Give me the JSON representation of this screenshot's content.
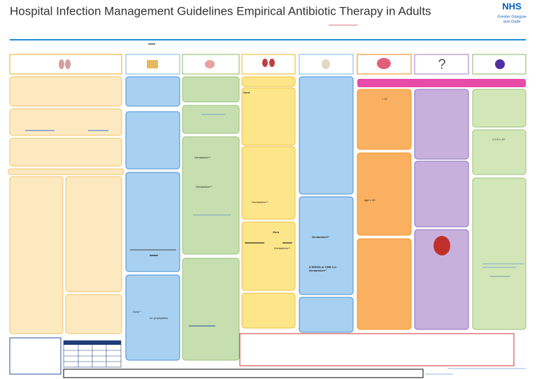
{
  "header": {
    "title": "Hospital Infection Management Guidelines Empirical Antibiotic Therapy in Adults",
    "logo": {
      "name": "NHS",
      "line1": "Greater Glasgow",
      "line2": "and Clyde"
    }
  },
  "panels": {
    "urinary_1": "Gent",
    "urinary_2": "Gentamicin**",
    "urinary_3": "Gent",
    "urinary_4": "Gentamicin**",
    "abdominal_1": "Gentamicin** ",
    "abdominal_2": "Gentamicin**",
    "skin_dose": "Dose *",
    "skin_prophylaxis": "for prophylaxis",
    "unknown_1": "Gentamicin**",
    "unknown_2": "If SIRS/S or CRB 3-2: Gentamicin**",
    "cns_1": "< 12",
    "cns_2": "age ≥ 40",
    "neutropenia_1": "≤ 0.5 x 10"
  }
}
